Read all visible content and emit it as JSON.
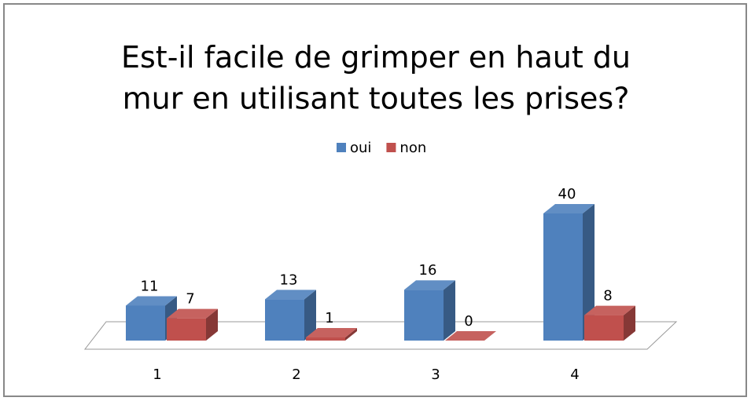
{
  "chart_data": {
    "type": "bar3d",
    "title": "Est-il facile de grimper en haut du mur en utilisant toutes les prises?",
    "categories": [
      "1",
      "2",
      "3",
      "4"
    ],
    "series": [
      {
        "name": "oui",
        "color": "#4f81bd",
        "values": [
          11,
          13,
          16,
          40
        ]
      },
      {
        "name": "non",
        "color": "#c0504d",
        "values": [
          7,
          1,
          0,
          8
        ]
      }
    ],
    "legend": "top"
  }
}
